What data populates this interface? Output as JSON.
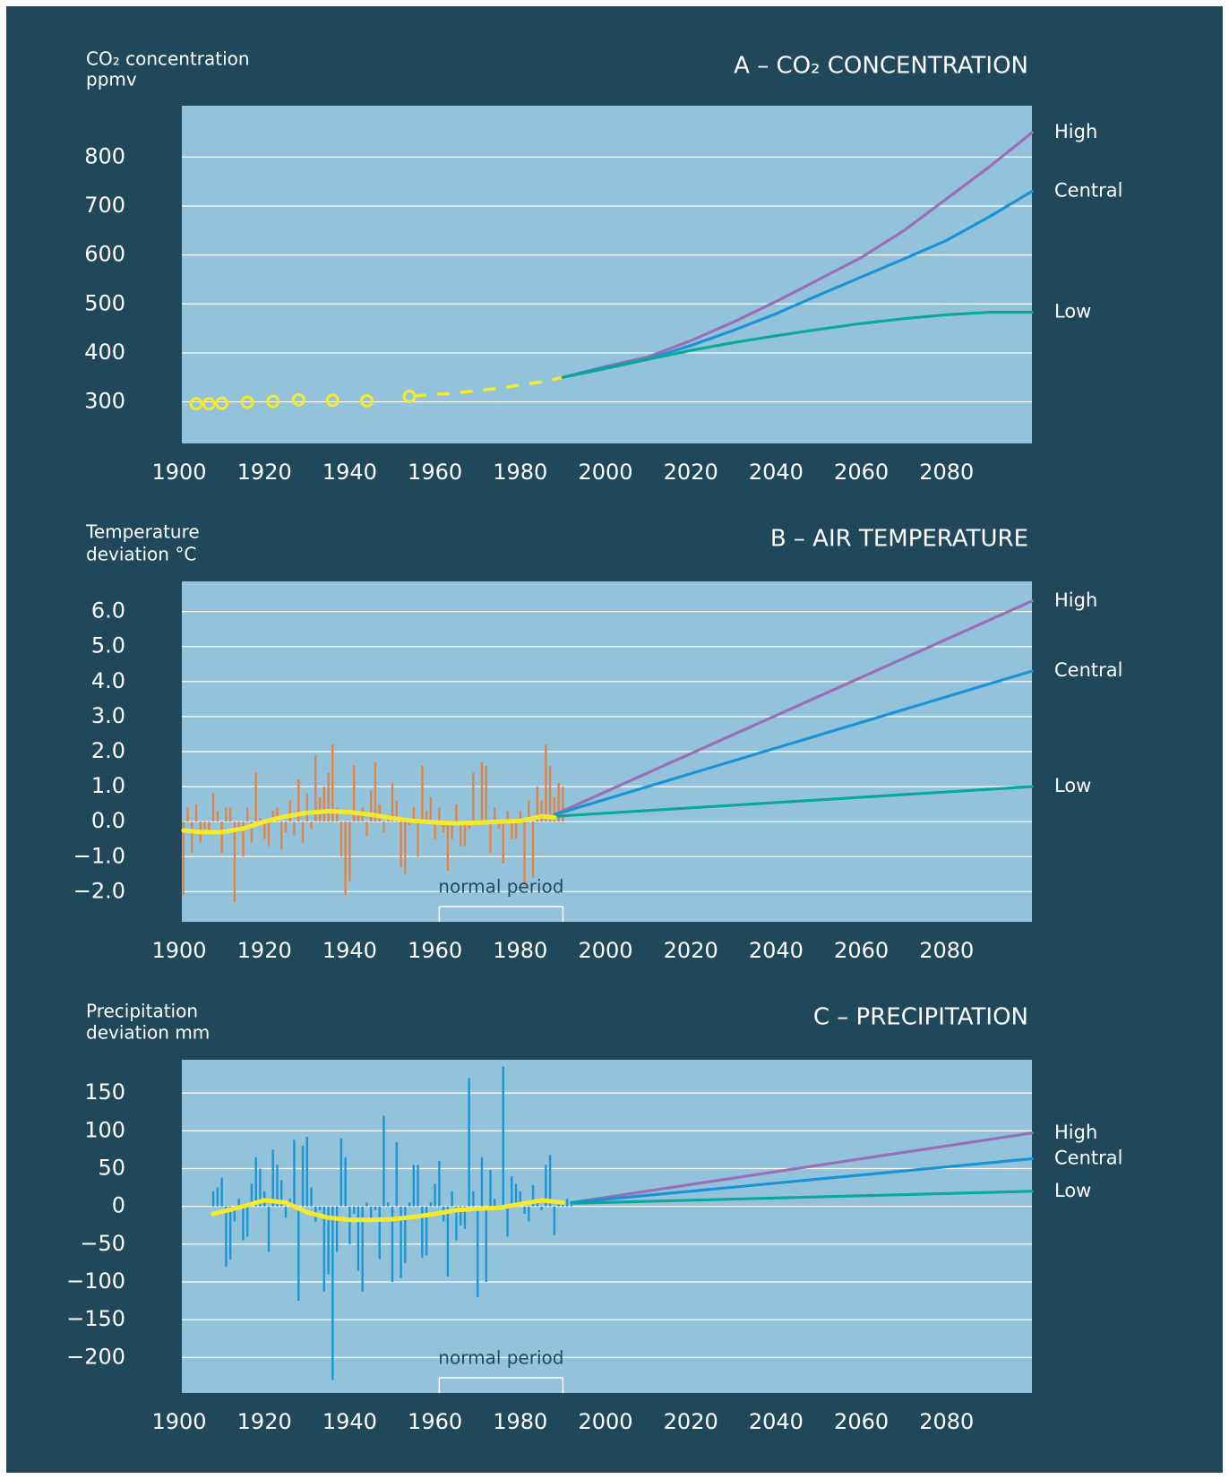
{
  "chart_data": [
    {
      "type": "line",
      "title": "A – CO₂ CONCENTRATION",
      "y_label": [
        "CO₂ concentration",
        "ppmv"
      ],
      "xlim": [
        1900,
        2100
      ],
      "xticks": [
        1900,
        1920,
        1940,
        1960,
        1980,
        2000,
        2020,
        2040,
        2060,
        2080
      ],
      "ylim": [
        215,
        905
      ],
      "yticks": [
        300,
        400,
        500,
        600,
        700,
        800
      ],
      "grid": true,
      "observations": {
        "type": "scatter",
        "color": "#f5e92a",
        "x": [
          1904,
          1907,
          1910,
          1916,
          1922,
          1928,
          1936,
          1944,
          1954
        ],
        "values": [
          296,
          296,
          297,
          299,
          301,
          304,
          303,
          302,
          311
        ]
      },
      "trend": {
        "color": "#f5e92a",
        "dashed": true,
        "x": [
          1955,
          1965,
          1975,
          1985,
          1990
        ],
        "values": [
          312,
          318,
          328,
          341,
          350
        ]
      },
      "series": [
        {
          "name": "High",
          "color": "#9b6fb8",
          "x": [
            1990,
            2000,
            2010,
            2020,
            2030,
            2040,
            2050,
            2060,
            2070,
            2080,
            2090,
            2100
          ],
          "values": [
            350,
            372,
            392,
            425,
            463,
            505,
            550,
            595,
            650,
            715,
            780,
            850
          ]
        },
        {
          "name": "Central",
          "color": "#1a93d6",
          "x": [
            1990,
            2000,
            2010,
            2020,
            2030,
            2040,
            2050,
            2060,
            2070,
            2080,
            2090,
            2100
          ],
          "values": [
            350,
            370,
            388,
            415,
            446,
            480,
            518,
            555,
            592,
            630,
            678,
            730
          ]
        },
        {
          "name": "Low",
          "color": "#0aa898",
          "x": [
            1990,
            2000,
            2010,
            2020,
            2030,
            2040,
            2050,
            2060,
            2070,
            2080,
            2090,
            2100
          ],
          "values": [
            350,
            368,
            387,
            405,
            421,
            435,
            448,
            460,
            470,
            478,
            483,
            483
          ]
        }
      ]
    },
    {
      "type": "line",
      "title": "B – AIR TEMPERATURE",
      "y_label": [
        "Temperature",
        "deviation °C"
      ],
      "xlim": [
        1900,
        2100
      ],
      "xticks": [
        1900,
        1920,
        1940,
        1960,
        1980,
        2000,
        2020,
        2040,
        2060,
        2080
      ],
      "ylim": [
        -2.86,
        6.86
      ],
      "yticks": [
        {
          "value": -2,
          "label": "−2.0"
        },
        {
          "value": -1,
          "label": "−1.0"
        },
        {
          "value": 0,
          "label": "0.0"
        },
        {
          "value": 1,
          "label": "1.0"
        },
        {
          "value": 2,
          "label": "2.0"
        },
        {
          "value": 3,
          "label": "3.0"
        },
        {
          "value": 4,
          "label": "4.0"
        },
        {
          "value": 5,
          "label": "5.0"
        },
        {
          "value": 6,
          "label": "6.0"
        }
      ],
      "grid": true,
      "observations": {
        "type": "bar",
        "color": "#e0844a",
        "x": [
          1901,
          1902,
          1903,
          1904,
          1905,
          1906,
          1907,
          1908,
          1909,
          1910,
          1911,
          1912,
          1913,
          1914,
          1915,
          1916,
          1917,
          1918,
          1919,
          1920,
          1921,
          1922,
          1923,
          1924,
          1925,
          1926,
          1927,
          1928,
          1929,
          1930,
          1931,
          1932,
          1933,
          1934,
          1935,
          1936,
          1937,
          1938,
          1939,
          1940,
          1941,
          1942,
          1943,
          1944,
          1945,
          1946,
          1947,
          1948,
          1949,
          1950,
          1951,
          1952,
          1953,
          1954,
          1955,
          1956,
          1957,
          1958,
          1959,
          1960,
          1961,
          1962,
          1963,
          1964,
          1965,
          1966,
          1967,
          1968,
          1969,
          1970,
          1971,
          1972,
          1973,
          1974,
          1975,
          1976,
          1977,
          1978,
          1979,
          1980,
          1981,
          1982,
          1983,
          1984,
          1985,
          1986,
          1987,
          1988,
          1989,
          1990
        ],
        "values": [
          -2.1,
          0.4,
          -0.9,
          0.5,
          -0.6,
          -0.2,
          -0.3,
          0.8,
          0.3,
          -0.9,
          0.4,
          0.4,
          -2.3,
          -0.3,
          -1.0,
          0.4,
          -0.6,
          1.4,
          0.1,
          -0.5,
          -0.7,
          0.3,
          0.4,
          -0.8,
          -0.3,
          0.6,
          -0.4,
          1.2,
          -0.6,
          0.8,
          -0.2,
          1.9,
          0.7,
          1.0,
          1.4,
          2.2,
          0.4,
          -1.0,
          -2.1,
          -1.7,
          1.6,
          0.2,
          0.4,
          -0.4,
          0.9,
          1.7,
          0.5,
          -0.3,
          0.1,
          1.1,
          0.6,
          -1.3,
          -1.5,
          -0.1,
          0.4,
          -1.0,
          1.6,
          0.3,
          0.7,
          -0.5,
          0.4,
          -0.3,
          -1.4,
          -0.5,
          0.5,
          -0.7,
          -0.7,
          -0.2,
          1.4,
          -0.1,
          1.7,
          1.6,
          -0.9,
          0.4,
          -0.2,
          -1.2,
          0.3,
          -0.5,
          -0.5,
          0.3,
          -1.8,
          0.6,
          -1.6,
          1.0,
          0.6,
          2.2,
          1.6,
          0.7,
          1.1,
          1.0
        ]
      },
      "smoothed": {
        "color": "#f5e92a",
        "x": [
          1901,
          1905,
          1910,
          1915,
          1920,
          1925,
          1930,
          1935,
          1940,
          1945,
          1950,
          1955,
          1960,
          1965,
          1970,
          1975,
          1980,
          1985,
          1988
        ],
        "values": [
          -0.25,
          -0.3,
          -0.3,
          -0.2,
          0,
          0.15,
          0.25,
          0.3,
          0.27,
          0.2,
          0.1,
          0.02,
          -0.02,
          -0.05,
          -0.03,
          0,
          0.02,
          0.15,
          0.12
        ]
      },
      "normal_period": {
        "label": "normal period",
        "x": [
          1961,
          1990
        ]
      },
      "series": [
        {
          "name": "High",
          "color": "#9b6fb8",
          "x": [
            1988,
            2100
          ],
          "values": [
            0.2,
            6.3
          ]
        },
        {
          "name": "Central",
          "color": "#1a93d6",
          "x": [
            1988,
            2100
          ],
          "values": [
            0.2,
            4.3
          ]
        },
        {
          "name": "Low",
          "color": "#0aa898",
          "x": [
            1988,
            2100
          ],
          "values": [
            0.15,
            1.0
          ]
        }
      ]
    },
    {
      "type": "line",
      "title": "C – PRECIPITATION",
      "y_label": [
        "Precipitation",
        "deviation mm"
      ],
      "xlim": [
        1900,
        2100
      ],
      "xticks": [
        1900,
        1920,
        1940,
        1960,
        1980,
        2000,
        2020,
        2040,
        2060,
        2080
      ],
      "ylim": [
        -247,
        194
      ],
      "yticks": [
        {
          "value": -200,
          "label": "−200"
        },
        {
          "value": -150,
          "label": "−150"
        },
        {
          "value": -100,
          "label": "−100"
        },
        {
          "value": -50,
          "label": "−50"
        },
        0,
        50,
        100,
        150
      ],
      "grid": true,
      "observations": {
        "type": "bar",
        "color": "#1b95d4",
        "x": [
          1908,
          1909,
          1910,
          1911,
          1912,
          1913,
          1914,
          1915,
          1916,
          1917,
          1918,
          1919,
          1920,
          1921,
          1922,
          1923,
          1924,
          1925,
          1926,
          1927,
          1928,
          1929,
          1930,
          1931,
          1932,
          1933,
          1934,
          1935,
          1936,
          1937,
          1938,
          1939,
          1940,
          1941,
          1942,
          1943,
          1944,
          1945,
          1946,
          1947,
          1948,
          1949,
          1950,
          1951,
          1952,
          1953,
          1954,
          1955,
          1956,
          1957,
          1958,
          1959,
          1960,
          1961,
          1962,
          1963,
          1964,
          1965,
          1966,
          1967,
          1968,
          1969,
          1970,
          1971,
          1972,
          1973,
          1974,
          1975,
          1976,
          1977,
          1978,
          1979,
          1980,
          1981,
          1982,
          1983,
          1984,
          1985,
          1986,
          1987,
          1988,
          1989,
          1990,
          1991,
          1992
        ],
        "values": [
          20,
          25,
          38,
          -80,
          -70,
          -20,
          10,
          -45,
          -40,
          30,
          65,
          50,
          20,
          -60,
          75,
          55,
          35,
          -15,
          10,
          88,
          -125,
          80,
          92,
          25,
          -20,
          -5,
          -113,
          -90,
          -230,
          -60,
          90,
          65,
          -50,
          -10,
          -85,
          -113,
          5,
          -20,
          -5,
          -70,
          120,
          5,
          -100,
          85,
          -95,
          -75,
          5,
          55,
          55,
          -68,
          -65,
          5,
          30,
          60,
          -20,
          -93,
          20,
          -45,
          -25,
          -30,
          170,
          20,
          -120,
          65,
          -100,
          48,
          10,
          -5,
          185,
          -40,
          40,
          30,
          20,
          -10,
          -20,
          28,
          5,
          -5,
          55,
          68,
          -38,
          5,
          5,
          10,
          2
        ]
      },
      "smoothed": {
        "color": "#f5e92a",
        "x": [
          1908,
          1915,
          1920,
          1925,
          1930,
          1935,
          1940,
          1945,
          1950,
          1955,
          1960,
          1965,
          1970,
          1975,
          1980,
          1985,
          1990
        ],
        "values": [
          -10,
          0,
          8,
          5,
          -8,
          -15,
          -18,
          -18,
          -17,
          -14,
          -10,
          -5,
          -3,
          -2,
          3,
          8,
          5
        ]
      },
      "normal_period": {
        "label": "normal period",
        "x": [
          1961,
          1990
        ]
      },
      "series": [
        {
          "name": "High",
          "color": "#9b6fb8",
          "x": [
            1992,
            2100
          ],
          "values": [
            5,
            97
          ]
        },
        {
          "name": "Central",
          "color": "#1a93d6",
          "x": [
            1992,
            2100
          ],
          "values": [
            5,
            63
          ]
        },
        {
          "name": "Low",
          "color": "#0aa898",
          "x": [
            1992,
            2100
          ],
          "values": [
            4,
            20
          ]
        }
      ]
    }
  ]
}
